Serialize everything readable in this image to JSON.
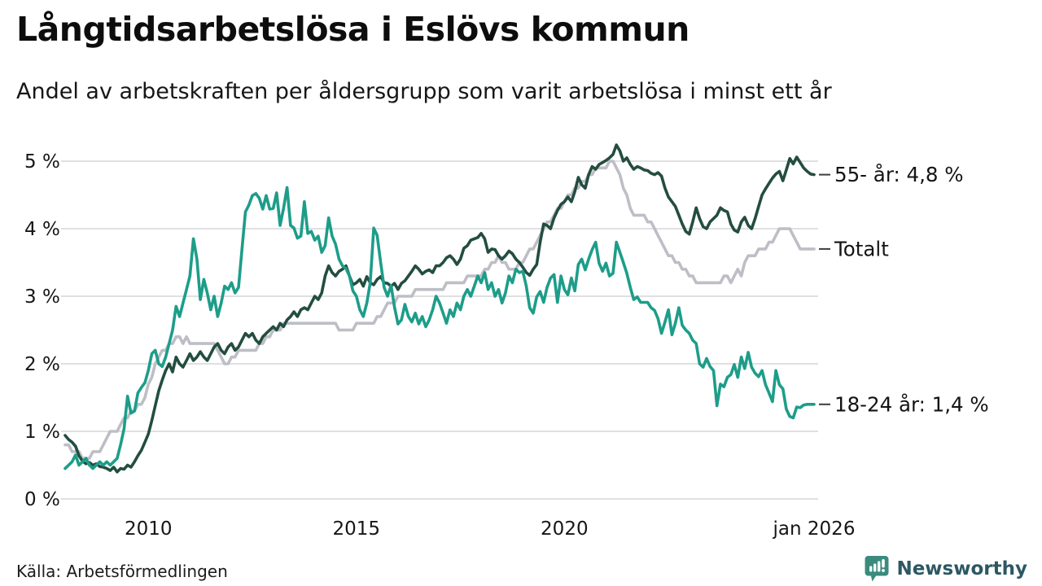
{
  "header": {
    "title": "Långtidsarbetslösa i Eslövs kommun",
    "subtitle": "Andel av arbetskraften per åldersgrupp som varit arbetslösa i minst ett år"
  },
  "footer": {
    "source": "Källa: Arbetsförmedlingen",
    "logo_text": "Newsworthy"
  },
  "colors": {
    "accent_teal": "#1d9d89",
    "dark_green": "#234d40",
    "gray": "#bdbec6",
    "gridline": "#e0e0e3",
    "annotation_dash": "#3c3c3c",
    "logo_icon": "#3a8b7d",
    "logo_text": "#2c5863",
    "text": "#161616"
  },
  "chart_data": {
    "type": "line",
    "title": "Långtidsarbetslösa i Eslövs kommun",
    "subtitle": "Andel av arbetskraften per åldersgrupp som varit arbetslösa i minst ett år",
    "unit": "% av arbetskraften",
    "x_start_year": 2008,
    "x_end_year": 2026,
    "points_per_year": 12,
    "grid": "horizontal",
    "ylim": [
      0,
      5.45
    ],
    "yticks": [
      "0 %",
      "1 %",
      "2 %",
      "3 %",
      "4 %",
      "5 %"
    ],
    "xticks": [
      {
        "label": "2010",
        "year": 2010
      },
      {
        "label": "2015",
        "year": 2015
      },
      {
        "label": "2020",
        "year": 2020
      },
      {
        "label": "jan 2026",
        "year": 2026
      }
    ],
    "legend_position": "right-annotations",
    "series": [
      {
        "name": "Totalt",
        "label": "Totalt",
        "end_value": 3.7,
        "color": "#bdbec6",
        "values": [
          0.8,
          0.8,
          0.7,
          0.7,
          0.7,
          0.6,
          0.6,
          0.6,
          0.7,
          0.7,
          0.7,
          0.8,
          0.9,
          1.0,
          1.0,
          1.0,
          1.1,
          1.2,
          1.2,
          1.3,
          1.3,
          1.4,
          1.4,
          1.5,
          1.7,
          1.8,
          2.0,
          2.1,
          2.2,
          2.2,
          2.3,
          2.3,
          2.4,
          2.4,
          2.3,
          2.4,
          2.3,
          2.3,
          2.3,
          2.3,
          2.3,
          2.3,
          2.3,
          2.3,
          2.2,
          2.1,
          2.0,
          2.0,
          2.1,
          2.1,
          2.2,
          2.2,
          2.2,
          2.2,
          2.2,
          2.2,
          2.3,
          2.3,
          2.4,
          2.4,
          2.5,
          2.5,
          2.5,
          2.6,
          2.6,
          2.6,
          2.6,
          2.6,
          2.6,
          2.6,
          2.6,
          2.6,
          2.6,
          2.6,
          2.6,
          2.6,
          2.6,
          2.6,
          2.6,
          2.5,
          2.5,
          2.5,
          2.5,
          2.5,
          2.6,
          2.6,
          2.6,
          2.6,
          2.6,
          2.6,
          2.7,
          2.7,
          2.8,
          2.9,
          2.9,
          2.9,
          3.0,
          3.0,
          3.0,
          3.0,
          3.0,
          3.1,
          3.1,
          3.1,
          3.1,
          3.1,
          3.1,
          3.1,
          3.1,
          3.1,
          3.2,
          3.2,
          3.2,
          3.2,
          3.2,
          3.2,
          3.3,
          3.3,
          3.3,
          3.3,
          3.3,
          3.4,
          3.4,
          3.5,
          3.5,
          3.6,
          3.5,
          3.5,
          3.4,
          3.4,
          3.4,
          3.5,
          3.5,
          3.6,
          3.7,
          3.7,
          3.8,
          3.9,
          4.0,
          4.1,
          4.1,
          4.2,
          4.3,
          4.3,
          4.4,
          4.5,
          4.5,
          4.6,
          4.6,
          4.7,
          4.7,
          4.8,
          4.8,
          4.9,
          4.9,
          4.9,
          4.9,
          5.0,
          5.0,
          4.9,
          4.8,
          4.6,
          4.5,
          4.3,
          4.2,
          4.2,
          4.2,
          4.2,
          4.1,
          4.1,
          4.0,
          3.9,
          3.8,
          3.7,
          3.6,
          3.6,
          3.5,
          3.5,
          3.4,
          3.4,
          3.3,
          3.3,
          3.2,
          3.2,
          3.2,
          3.2,
          3.2,
          3.2,
          3.2,
          3.2,
          3.3,
          3.3,
          3.2,
          3.3,
          3.4,
          3.3,
          3.5,
          3.6,
          3.6,
          3.6,
          3.7,
          3.7,
          3.7,
          3.8,
          3.8,
          3.9,
          4.0,
          4.0,
          4.0,
          4.0,
          3.9,
          3.8,
          3.7,
          3.7,
          3.7,
          3.7,
          3.7
        ]
      },
      {
        "name": "55- år",
        "label": "55- år: 4,8 %",
        "end_value": 4.8,
        "color": "#234d40",
        "values": [
          0.94,
          0.88,
          0.84,
          0.78,
          0.64,
          0.56,
          0.52,
          0.54,
          0.5,
          0.52,
          0.48,
          0.47,
          0.45,
          0.42,
          0.47,
          0.4,
          0.45,
          0.44,
          0.5,
          0.47,
          0.55,
          0.64,
          0.72,
          0.84,
          0.96,
          1.16,
          1.38,
          1.6,
          1.76,
          1.9,
          2.0,
          1.88,
          2.1,
          2.0,
          1.95,
          2.05,
          2.15,
          2.05,
          2.1,
          2.18,
          2.1,
          2.05,
          2.15,
          2.25,
          2.3,
          2.2,
          2.15,
          2.25,
          2.3,
          2.2,
          2.25,
          2.35,
          2.45,
          2.4,
          2.45,
          2.35,
          2.3,
          2.4,
          2.45,
          2.5,
          2.55,
          2.5,
          2.6,
          2.55,
          2.65,
          2.7,
          2.77,
          2.7,
          2.8,
          2.83,
          2.8,
          2.9,
          3.0,
          2.95,
          3.05,
          3.3,
          3.45,
          3.35,
          3.3,
          3.37,
          3.4,
          3.45,
          3.3,
          3.17,
          3.2,
          3.25,
          3.15,
          3.29,
          3.2,
          3.17,
          3.25,
          3.29,
          3.2,
          3.19,
          3.15,
          3.19,
          3.1,
          3.19,
          3.23,
          3.3,
          3.37,
          3.45,
          3.4,
          3.33,
          3.37,
          3.39,
          3.35,
          3.45,
          3.45,
          3.5,
          3.57,
          3.6,
          3.55,
          3.47,
          3.55,
          3.71,
          3.75,
          3.83,
          3.85,
          3.87,
          3.93,
          3.85,
          3.65,
          3.7,
          3.69,
          3.6,
          3.55,
          3.6,
          3.67,
          3.63,
          3.55,
          3.5,
          3.43,
          3.35,
          3.31,
          3.4,
          3.47,
          3.8,
          4.07,
          4.05,
          4.0,
          4.16,
          4.27,
          4.36,
          4.4,
          4.47,
          4.4,
          4.55,
          4.76,
          4.65,
          4.6,
          4.8,
          4.92,
          4.88,
          4.95,
          4.98,
          5.01,
          5.05,
          5.1,
          5.24,
          5.15,
          5.0,
          5.05,
          4.95,
          4.88,
          4.92,
          4.9,
          4.87,
          4.86,
          4.82,
          4.8,
          4.83,
          4.78,
          4.6,
          4.47,
          4.4,
          4.33,
          4.2,
          4.07,
          3.96,
          3.92,
          4.1,
          4.31,
          4.15,
          4.03,
          4.0,
          4.1,
          4.15,
          4.2,
          4.31,
          4.27,
          4.25,
          4.07,
          3.98,
          3.95,
          4.1,
          4.17,
          4.05,
          4.0,
          4.15,
          4.33,
          4.5,
          4.59,
          4.67,
          4.75,
          4.81,
          4.85,
          4.71,
          4.87,
          5.04,
          4.96,
          5.06,
          4.98,
          4.9,
          4.85,
          4.81,
          4.8
        ]
      },
      {
        "name": "18-24 år",
        "label": "18-24 år: 1,4 %",
        "end_value": 1.4,
        "color": "#1d9d89",
        "values": [
          0.45,
          0.5,
          0.55,
          0.65,
          0.5,
          0.55,
          0.6,
          0.5,
          0.45,
          0.5,
          0.55,
          0.5,
          0.55,
          0.5,
          0.55,
          0.6,
          0.8,
          1.04,
          1.52,
          1.27,
          1.3,
          1.57,
          1.65,
          1.72,
          1.9,
          2.15,
          2.2,
          2.0,
          1.96,
          2.1,
          2.3,
          2.5,
          2.85,
          2.7,
          2.9,
          3.1,
          3.3,
          3.85,
          3.55,
          2.95,
          3.25,
          3.05,
          2.8,
          3.0,
          2.7,
          2.9,
          3.15,
          3.1,
          3.2,
          3.05,
          3.13,
          3.69,
          4.25,
          4.35,
          4.49,
          4.52,
          4.45,
          4.29,
          4.49,
          4.29,
          4.3,
          4.53,
          4.05,
          4.3,
          4.61,
          4.05,
          4.01,
          3.86,
          3.89,
          4.4,
          3.93,
          3.96,
          3.83,
          3.89,
          3.65,
          3.75,
          4.16,
          3.89,
          3.77,
          3.55,
          3.45,
          3.41,
          3.3,
          3.08,
          3.0,
          2.8,
          2.7,
          2.9,
          3.2,
          4.01,
          3.9,
          3.5,
          3.13,
          3.0,
          3.16,
          2.84,
          2.59,
          2.65,
          2.88,
          2.7,
          2.62,
          2.75,
          2.59,
          2.7,
          2.55,
          2.65,
          2.8,
          3.0,
          2.9,
          2.75,
          2.6,
          2.8,
          2.7,
          2.9,
          2.8,
          3.0,
          3.1,
          3.0,
          3.15,
          3.3,
          3.2,
          3.35,
          3.1,
          3.2,
          3.0,
          3.1,
          2.9,
          3.05,
          3.3,
          3.2,
          3.4,
          3.35,
          3.37,
          3.15,
          2.83,
          2.75,
          2.99,
          3.07,
          2.91,
          3.13,
          3.27,
          3.32,
          2.91,
          3.3,
          3.1,
          3.02,
          3.27,
          3.08,
          3.47,
          3.55,
          3.39,
          3.55,
          3.69,
          3.8,
          3.49,
          3.37,
          3.49,
          3.3,
          3.34,
          3.8,
          3.65,
          3.5,
          3.34,
          3.13,
          2.95,
          2.99,
          2.91,
          2.91,
          2.91,
          2.83,
          2.79,
          2.67,
          2.45,
          2.62,
          2.8,
          2.43,
          2.6,
          2.83,
          2.57,
          2.5,
          2.45,
          2.35,
          2.3,
          2.0,
          1.95,
          2.08,
          1.96,
          1.9,
          1.38,
          1.7,
          1.66,
          1.8,
          1.84,
          1.99,
          1.8,
          2.1,
          1.93,
          2.17,
          1.95,
          1.86,
          1.81,
          1.9,
          1.69,
          1.57,
          1.44,
          1.9,
          1.69,
          1.63,
          1.33,
          1.22,
          1.2,
          1.36,
          1.35,
          1.39,
          1.4,
          1.4,
          1.4
        ]
      }
    ]
  }
}
